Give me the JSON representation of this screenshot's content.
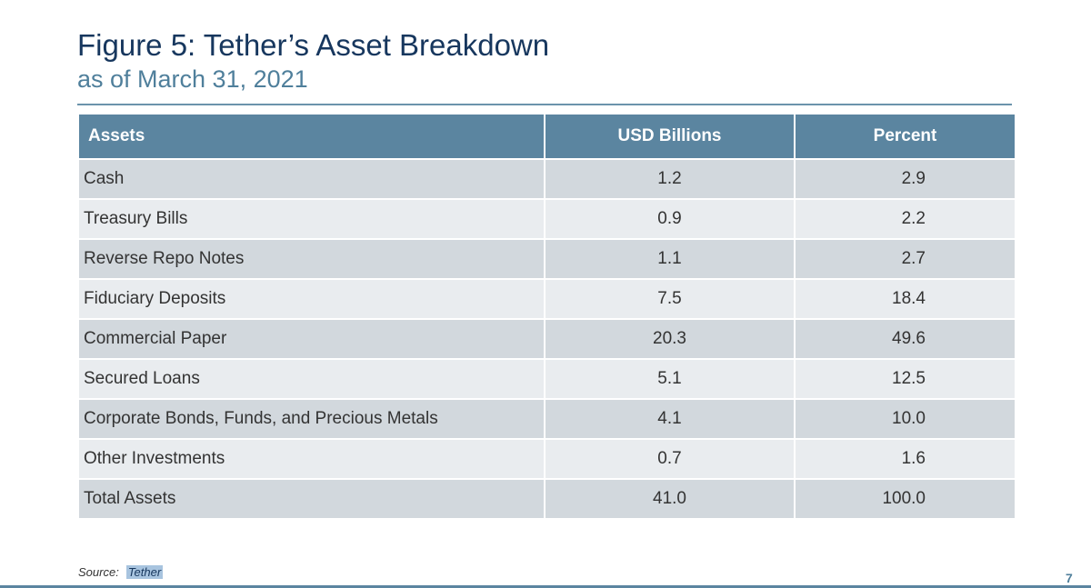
{
  "header": {
    "title": "Figure 5:  Tether’s Asset Breakdown",
    "subtitle": "as of March 31, 2021"
  },
  "table": {
    "columns": [
      "Assets",
      "USD Billions",
      "Percent"
    ],
    "rows": [
      {
        "asset": "Cash",
        "usd": "1.2",
        "percent": "2.9"
      },
      {
        "asset": "Treasury Bills",
        "usd": "0.9",
        "percent": "2.2"
      },
      {
        "asset": "Reverse Repo Notes",
        "usd": "1.1",
        "percent": "2.7"
      },
      {
        "asset": "Fiduciary Deposits",
        "usd": "7.5",
        "percent": "18.4"
      },
      {
        "asset": "Commercial Paper",
        "usd": "20.3",
        "percent": "49.6"
      },
      {
        "asset": "Secured Loans",
        "usd": "5.1",
        "percent": "12.5"
      },
      {
        "asset": "Corporate Bonds, Funds, and Precious Metals",
        "usd": "4.1",
        "percent": "10.0"
      },
      {
        "asset": "Other Investments",
        "usd": "0.7",
        "percent": "1.6"
      },
      {
        "asset": "Total Assets",
        "usd": "41.0",
        "percent": "100.0"
      }
    ]
  },
  "footer": {
    "source_label": "Source:",
    "source_value": "Tether",
    "page_number": "7"
  },
  "colors": {
    "title": "#17375e",
    "subtitle": "#4f7f9b",
    "header_bg": "#5b85a0",
    "row_odd": "#d2d8dd",
    "row_even": "#e9ecef",
    "highlight": "#a8c4df"
  }
}
